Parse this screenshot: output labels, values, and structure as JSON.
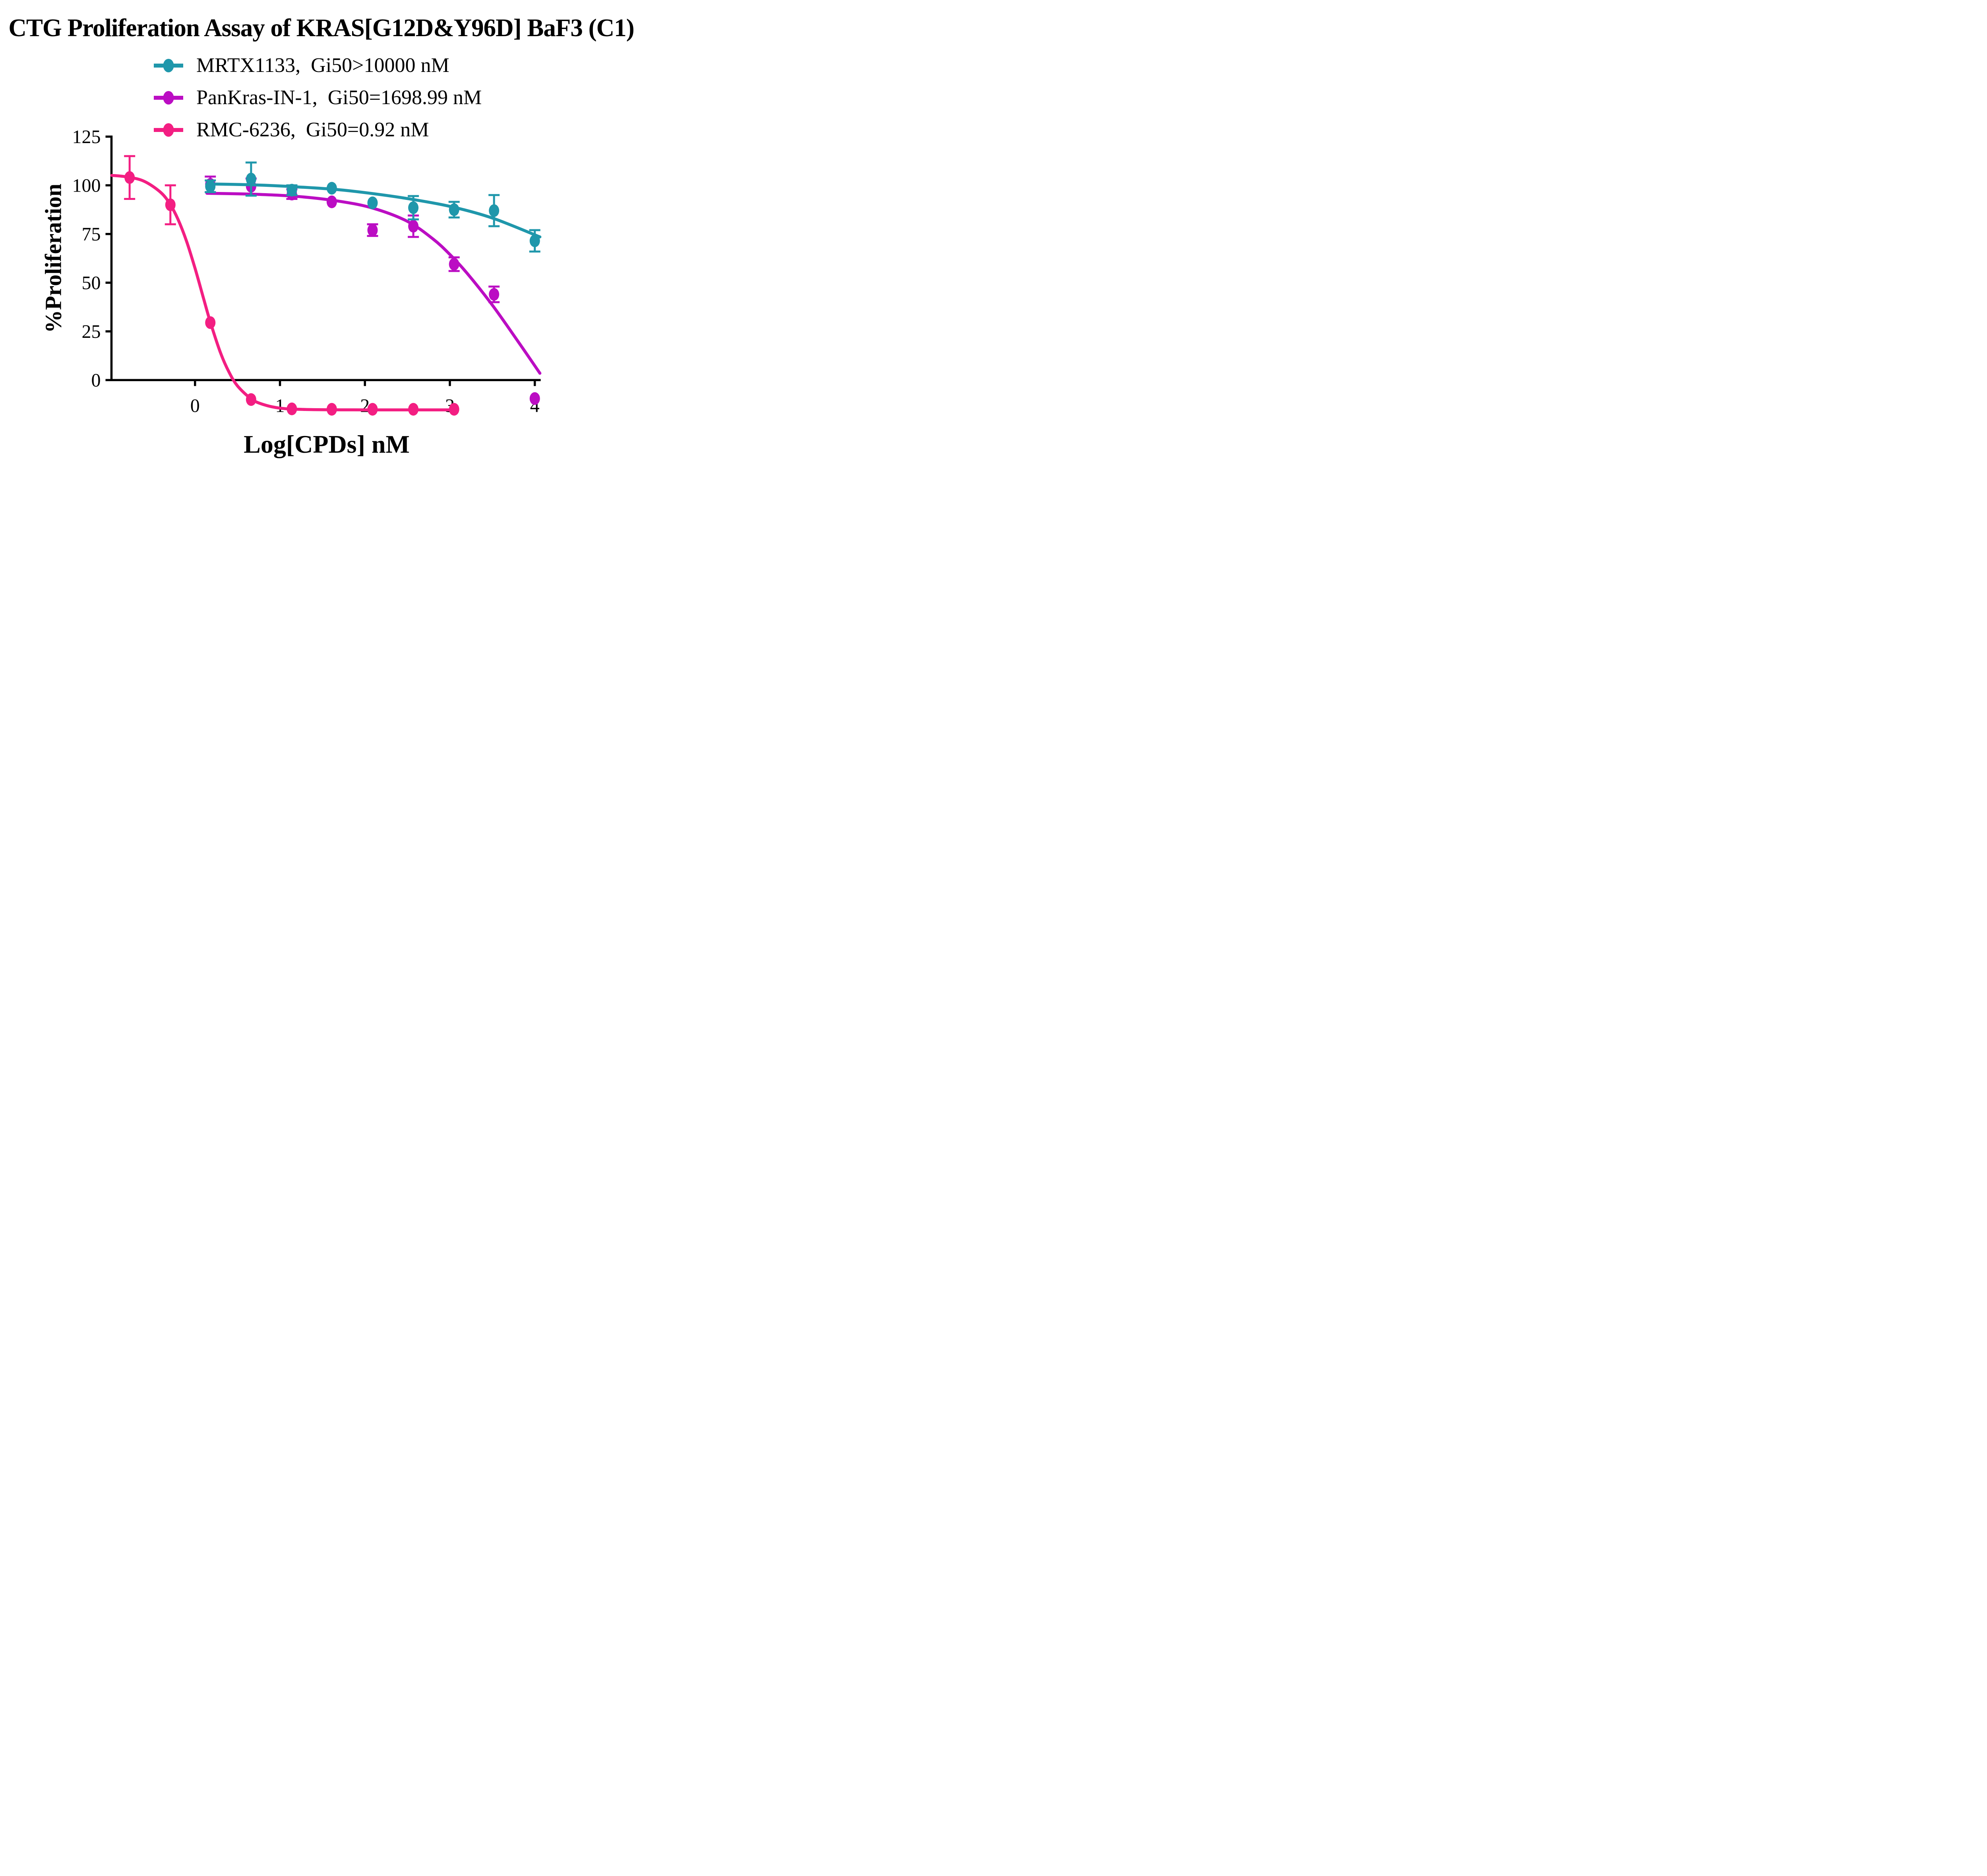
{
  "page": {
    "background": "#ffffff"
  },
  "chart_data": {
    "type": "line",
    "title": "CTG Proliferation Assay of KRAS[G12D&Y96D] BaF3 (C1)",
    "xlabel": "Log[CPDs] nM",
    "ylabel": "%Proliferation",
    "x_ticks": [
      0,
      1,
      2,
      3,
      4
    ],
    "y_ticks": [
      0,
      25,
      50,
      75,
      100,
      125
    ],
    "xlim": [
      -0.98,
      4.12
    ],
    "ylim": [
      -22,
      128
    ],
    "grid": false,
    "legend_position": "top-center",
    "axis_color": "#000000",
    "series": [
      {
        "name": "MRTX1133",
        "legend_label": "MRTX1133,  Gi50>10000 nM",
        "gi50": ">10000 nM",
        "color": "#1F97AB",
        "points": [
          {
            "x": 0.18,
            "y": 99.5,
            "err": 3
          },
          {
            "x": 0.66,
            "y": 103.2,
            "err": 8.5
          },
          {
            "x": 1.14,
            "y": 97.5,
            "err": 2.5
          },
          {
            "x": 1.61,
            "y": 98.5,
            "err": 0
          },
          {
            "x": 2.09,
            "y": 91,
            "err": 0
          },
          {
            "x": 2.57,
            "y": 88.5,
            "err": 6
          },
          {
            "x": 3.05,
            "y": 87.5,
            "err": 4
          },
          {
            "x": 3.52,
            "y": 87,
            "err": 8
          },
          {
            "x": 4.0,
            "y": 71.5,
            "err": 5.5
          }
        ],
        "curve": [
          [
            0.14,
            100.7
          ],
          [
            0.7,
            100.2
          ],
          [
            1.2,
            99.2
          ],
          [
            1.7,
            97.7
          ],
          [
            2.1,
            95.7
          ],
          [
            2.5,
            93.2
          ],
          [
            3.0,
            89.2
          ],
          [
            3.5,
            83.2
          ],
          [
            4.06,
            73.5
          ]
        ]
      },
      {
        "name": "PanKras-IN-1",
        "legend_label": "PanKras-IN-1,  Gi50=1698.99 nM",
        "gi50": "1698.99 nM",
        "color": "#BB0DC3",
        "points": [
          {
            "x": 0.18,
            "y": 100.5,
            "err": 4
          },
          {
            "x": 0.66,
            "y": 99.5,
            "err": 4
          },
          {
            "x": 1.14,
            "y": 95.5,
            "err": 2.5
          },
          {
            "x": 1.61,
            "y": 91.5,
            "err": 0
          },
          {
            "x": 2.09,
            "y": 77,
            "err": 3
          },
          {
            "x": 2.57,
            "y": 79,
            "err": 5.5
          },
          {
            "x": 3.05,
            "y": 59.5,
            "err": 3.5
          },
          {
            "x": 3.52,
            "y": 44,
            "err": 4
          },
          {
            "x": 4.0,
            "y": -9.5,
            "err": 0
          }
        ],
        "curve": [
          [
            0.14,
            95.9
          ],
          [
            0.7,
            95.4
          ],
          [
            1.2,
            94.3
          ],
          [
            1.7,
            91.8
          ],
          [
            2.1,
            88.2
          ],
          [
            2.5,
            81.5
          ],
          [
            2.8,
            72.5
          ],
          [
            3.0,
            64.5
          ],
          [
            3.2,
            55
          ],
          [
            3.5,
            38.5
          ],
          [
            3.8,
            20
          ],
          [
            4.06,
            3.5
          ]
        ]
      },
      {
        "name": "RMC-6236",
        "legend_label": "RMC-6236,  Gi50=0.92 nM",
        "gi50": "0.92 nM",
        "color": "#F31E82",
        "points": [
          {
            "x": -0.77,
            "y": 104,
            "err": 11
          },
          {
            "x": -0.29,
            "y": 90,
            "err": 10
          },
          {
            "x": 0.18,
            "y": 29.5,
            "err": 0
          },
          {
            "x": 0.66,
            "y": -10,
            "err": 0
          },
          {
            "x": 1.14,
            "y": -14.8,
            "err": 0
          },
          {
            "x": 1.61,
            "y": -15,
            "err": 0
          },
          {
            "x": 2.09,
            "y": -15,
            "err": 0
          },
          {
            "x": 2.57,
            "y": -15,
            "err": 0
          },
          {
            "x": 3.05,
            "y": -15,
            "err": 0
          }
        ],
        "curve": [
          [
            -0.98,
            105.1
          ],
          [
            -0.8,
            104.3
          ],
          [
            -0.6,
            102.1
          ],
          [
            -0.4,
            96.2
          ],
          [
            -0.29,
            90
          ],
          [
            -0.2,
            82.5
          ],
          [
            -0.1,
            71.3
          ],
          [
            0,
            57.4
          ],
          [
            0.1,
            42
          ],
          [
            0.18,
            29.8
          ],
          [
            0.3,
            14
          ],
          [
            0.4,
            4.1
          ],
          [
            0.5,
            -3
          ],
          [
            0.66,
            -9.6
          ],
          [
            0.8,
            -12.5
          ],
          [
            1.0,
            -14.4
          ],
          [
            1.3,
            -15.1
          ],
          [
            2.0,
            -15.3
          ],
          [
            3.05,
            -15.3
          ]
        ]
      }
    ]
  }
}
